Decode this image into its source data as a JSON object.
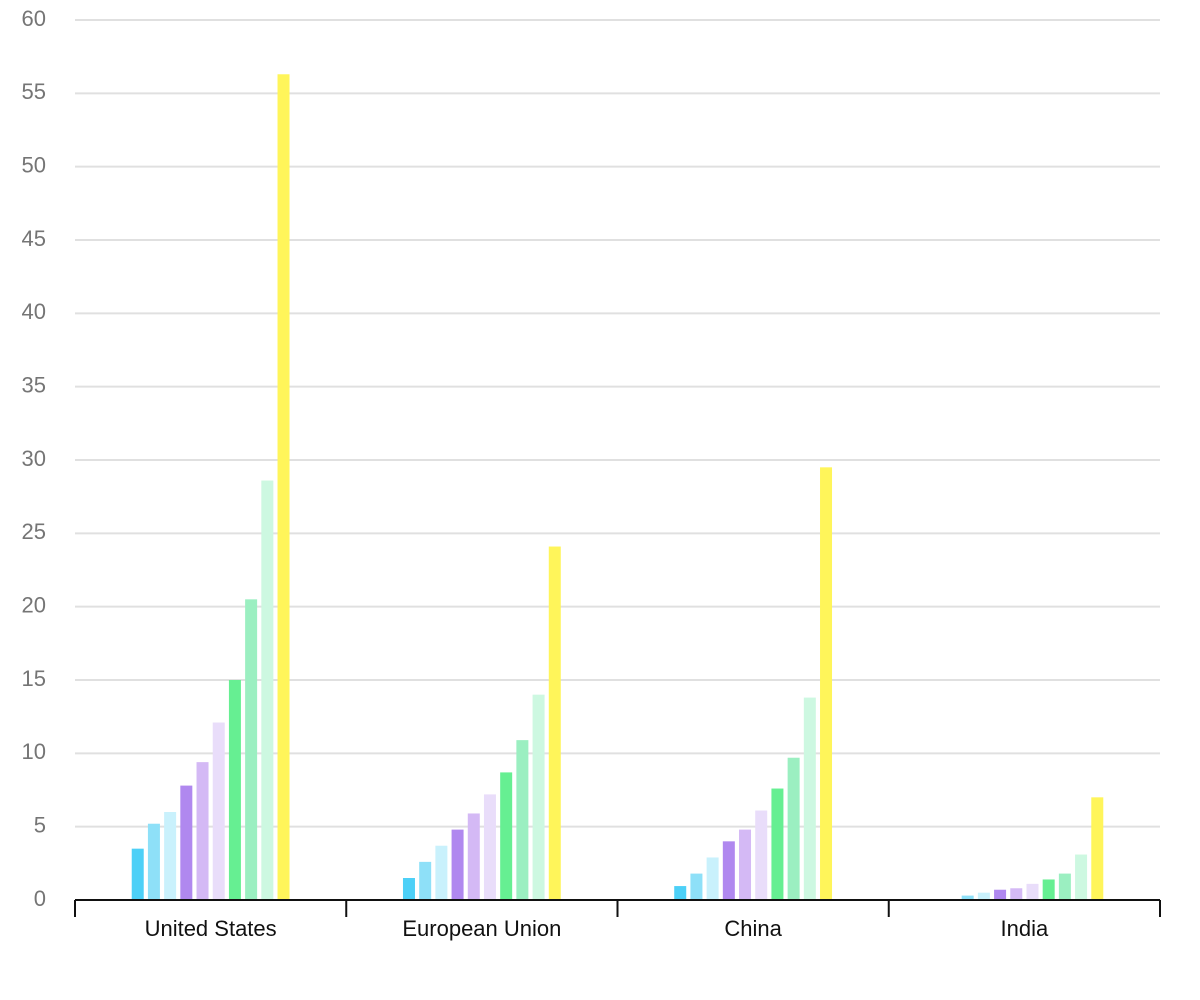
{
  "chart_data": {
    "type": "bar",
    "categories": [
      "United States",
      "European Union",
      "China",
      "India"
    ],
    "series": [
      {
        "color": "#4dd0f7",
        "values": [
          3.5,
          1.5,
          0.95,
          0.05
        ]
      },
      {
        "color": "#8ee0f8",
        "values": [
          5.2,
          2.6,
          1.8,
          0.3
        ]
      },
      {
        "color": "#c9f1fc",
        "values": [
          6.0,
          3.7,
          2.9,
          0.5
        ]
      },
      {
        "color": "#b088ef",
        "values": [
          7.8,
          4.8,
          4.0,
          0.7
        ]
      },
      {
        "color": "#d4b9f5",
        "values": [
          9.4,
          5.9,
          4.8,
          0.8
        ]
      },
      {
        "color": "#e9ddfa",
        "values": [
          12.1,
          7.2,
          6.1,
          1.1
        ]
      },
      {
        "color": "#66ef92",
        "values": [
          15.0,
          8.7,
          7.6,
          1.4
        ]
      },
      {
        "color": "#9befc1",
        "values": [
          20.5,
          10.9,
          9.7,
          1.8
        ]
      },
      {
        "color": "#cdf8e1",
        "values": [
          28.6,
          14.0,
          13.8,
          3.1
        ]
      },
      {
        "color": "#fff55a",
        "values": [
          56.3,
          24.1,
          29.5,
          7.0
        ]
      }
    ],
    "ylim": [
      0,
      60
    ],
    "yticks": [
      0,
      5,
      10,
      15,
      20,
      25,
      30,
      35,
      40,
      45,
      50,
      55,
      60
    ],
    "grid": true
  }
}
